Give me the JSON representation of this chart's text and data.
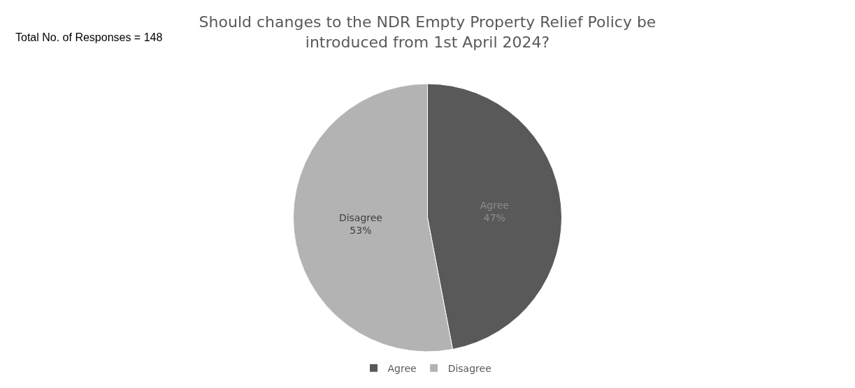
{
  "chart_data": {
    "type": "pie",
    "title": "Should changes to the NDR Empty Property Relief Policy be introduced from 1st April 2024?",
    "categories": [
      "Agree",
      "Disagree"
    ],
    "values": [
      47,
      53
    ],
    "value_labels": [
      "47%",
      "53%"
    ],
    "colors": [
      "#595959",
      "#b3b3b3"
    ],
    "legend": "bottom",
    "annotations": [
      "Total No. of Responses = 148"
    ]
  }
}
